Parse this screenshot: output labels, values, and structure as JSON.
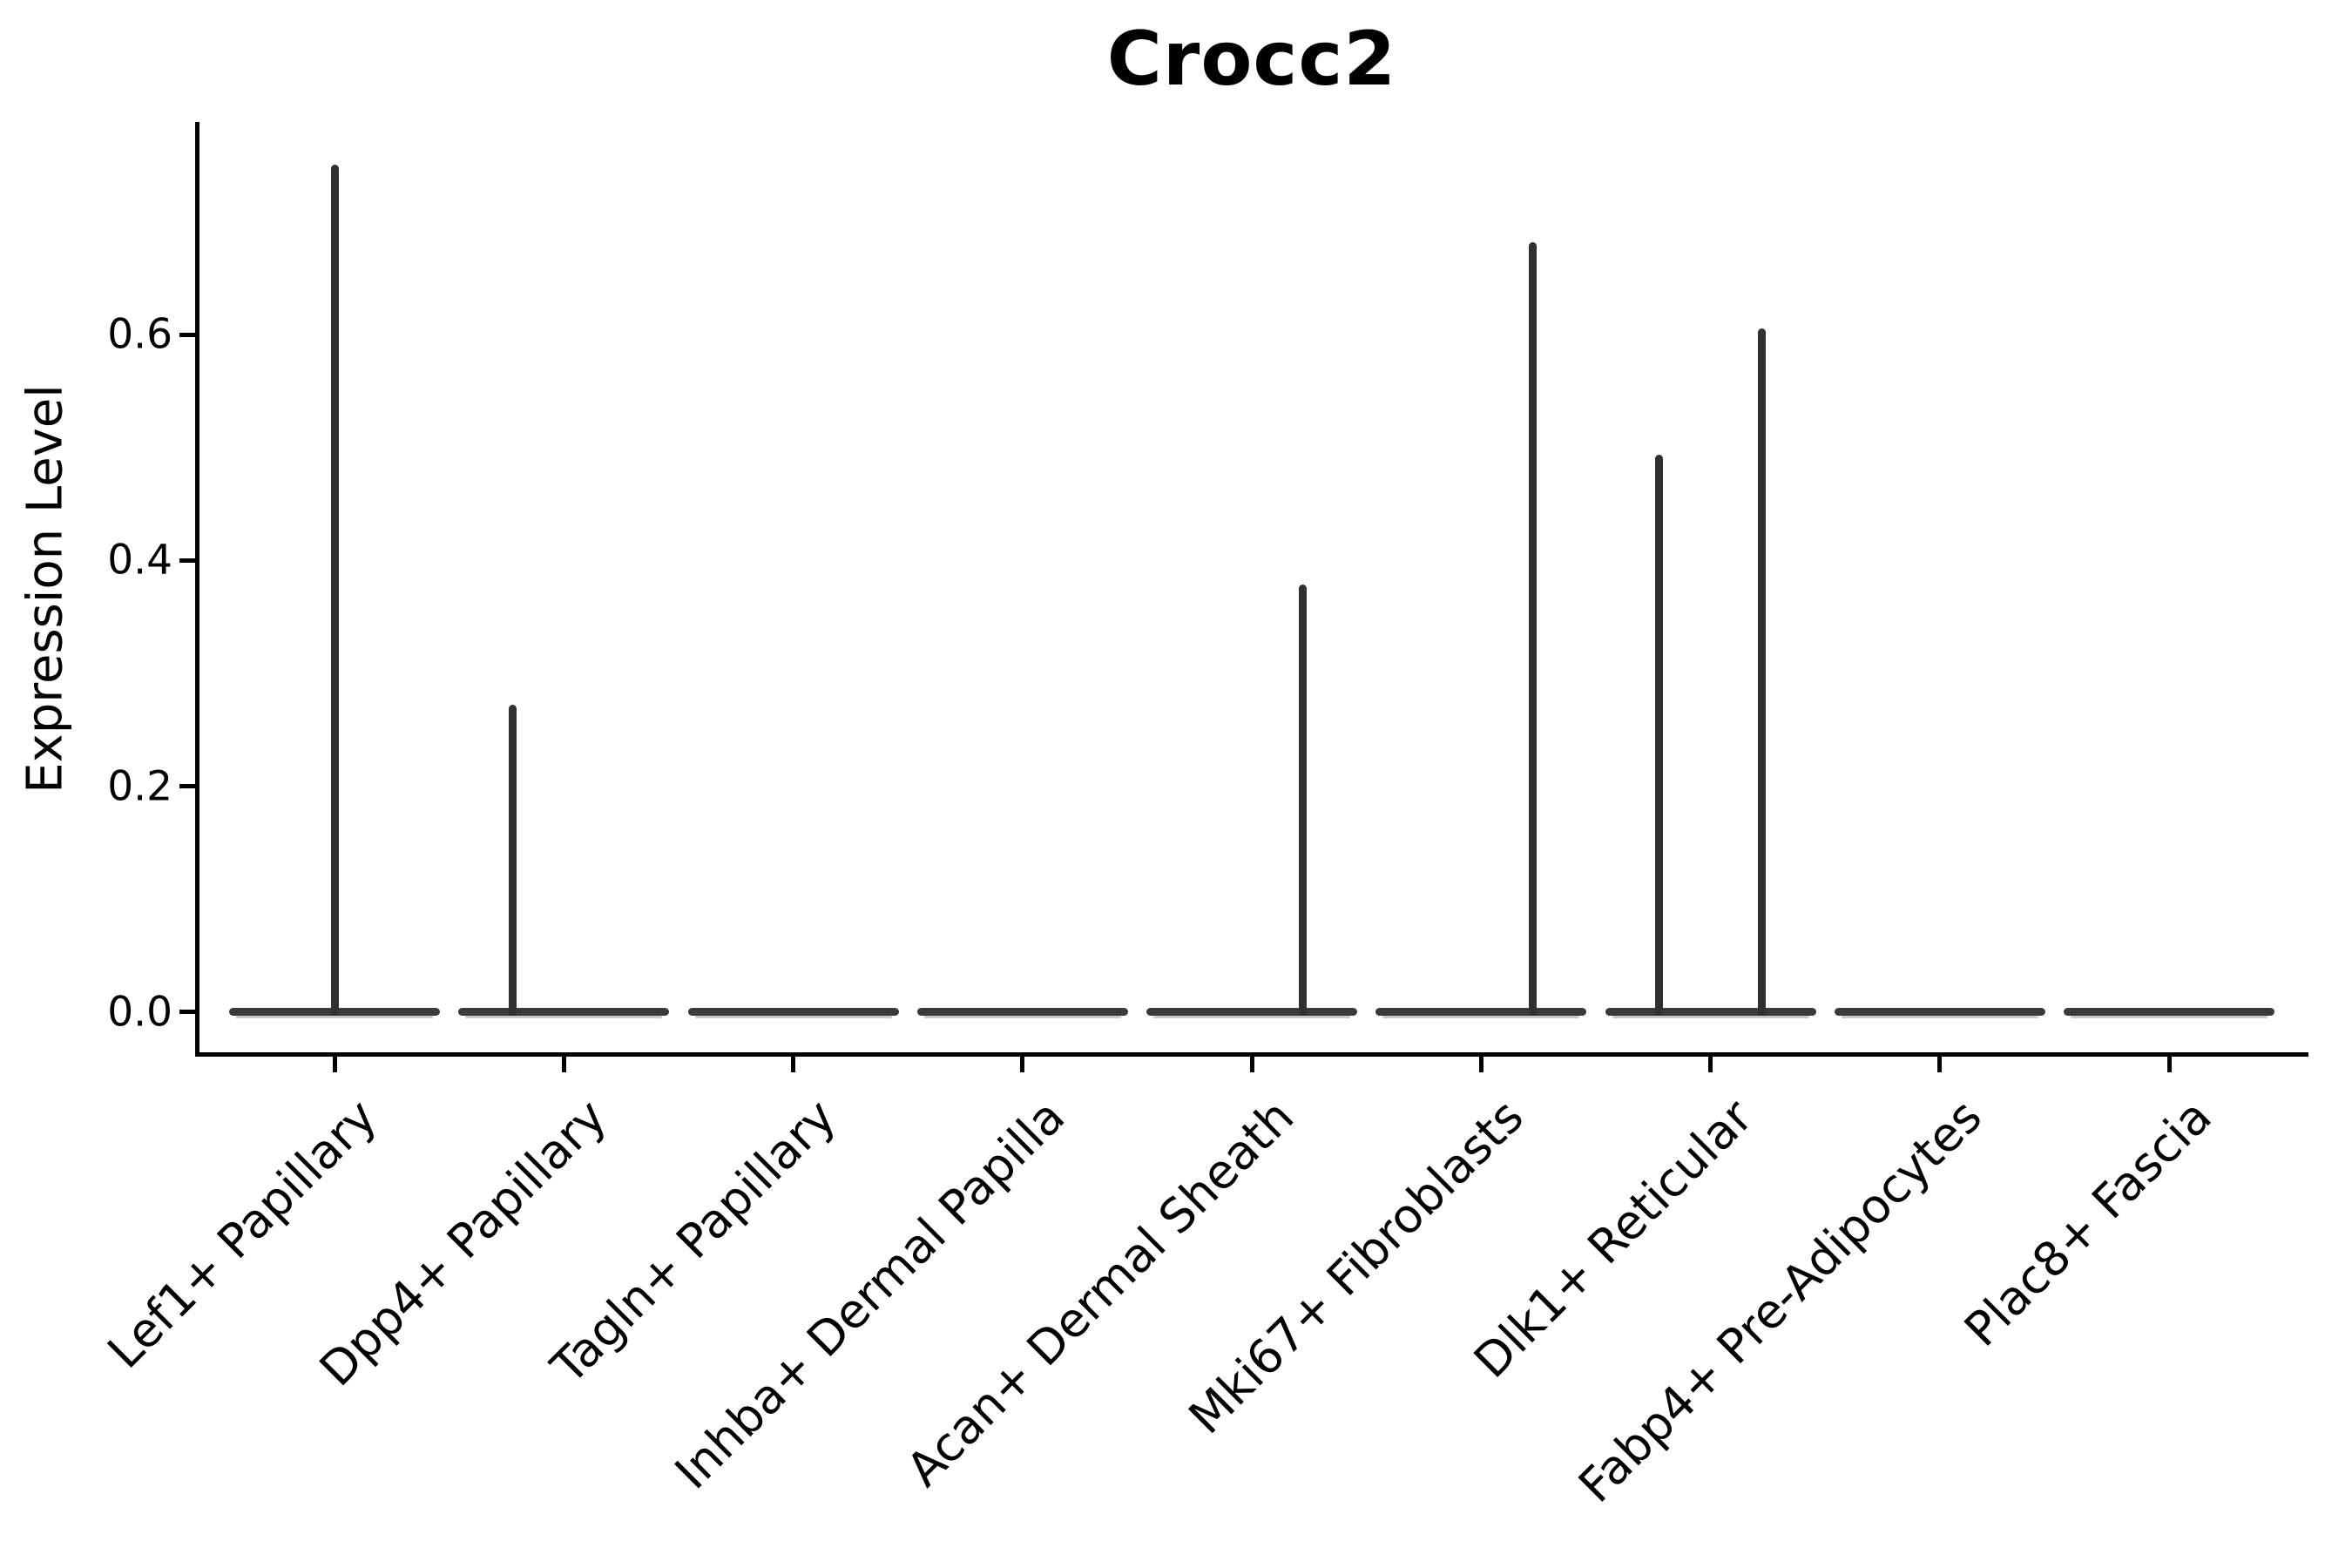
{
  "figure": {
    "title": "Crocc2",
    "background_color": "#ffffff",
    "text_color": "#000000",
    "axis_color": "#000000",
    "violin_color": "#3a3a3a"
  },
  "chart_data": {
    "type": "violin",
    "title": "Crocc2",
    "xlabel": "",
    "ylabel": "Expression Level",
    "grid": false,
    "legend": false,
    "ylim": [
      -0.04,
      0.79
    ],
    "ytick_labels": [
      "0.0",
      "0.2",
      "0.4",
      "0.6"
    ],
    "ytick_values": [
      0.0,
      0.2,
      0.4,
      0.6
    ],
    "categories": [
      "Lef1+ Papillary",
      "Dpp4+ Papillary",
      "Tagln+ Papillary",
      "Inhba+ Dermal Papilla",
      "Acan+ Dermal Sheath",
      "Mki67+ Fibroblasts",
      "Dlk1+ Reticular",
      "Fabp4+ Pre-Adipocytes",
      "Plac8+ Fascia"
    ],
    "violins": [
      {
        "category": "Lef1+ Papillary",
        "baseline_value": 0.0,
        "spikes": [
          {
            "offset_frac": 0.0,
            "max_expression": 0.751
          }
        ]
      },
      {
        "category": "Dpp4+ Papillary",
        "baseline_value": 0.0,
        "spikes": [
          {
            "offset_frac": -0.224,
            "max_expression": 0.272
          }
        ]
      },
      {
        "category": "Tagln+ Papillary",
        "baseline_value": 0.0,
        "spikes": []
      },
      {
        "category": "Inhba+ Dermal Papilla",
        "baseline_value": 0.0,
        "spikes": []
      },
      {
        "category": "Acan+ Dermal Sheath",
        "baseline_value": 0.0,
        "spikes": [
          {
            "offset_frac": 0.224,
            "max_expression": 0.379
          }
        ]
      },
      {
        "category": "Mki67+ Fibroblasts",
        "baseline_value": 0.0,
        "spikes": [
          {
            "offset_frac": 0.224,
            "max_expression": 0.682
          }
        ]
      },
      {
        "category": "Dlk1+ Reticular",
        "baseline_value": 0.0,
        "spikes": [
          {
            "offset_frac": -0.226,
            "max_expression": 0.494
          },
          {
            "offset_frac": 0.223,
            "max_expression": 0.606
          }
        ]
      },
      {
        "category": "Fabp4+ Pre-Adipocytes",
        "baseline_value": 0.0,
        "spikes": []
      },
      {
        "category": "Plac8+ Fascia",
        "baseline_value": 0.0,
        "spikes": []
      }
    ]
  }
}
